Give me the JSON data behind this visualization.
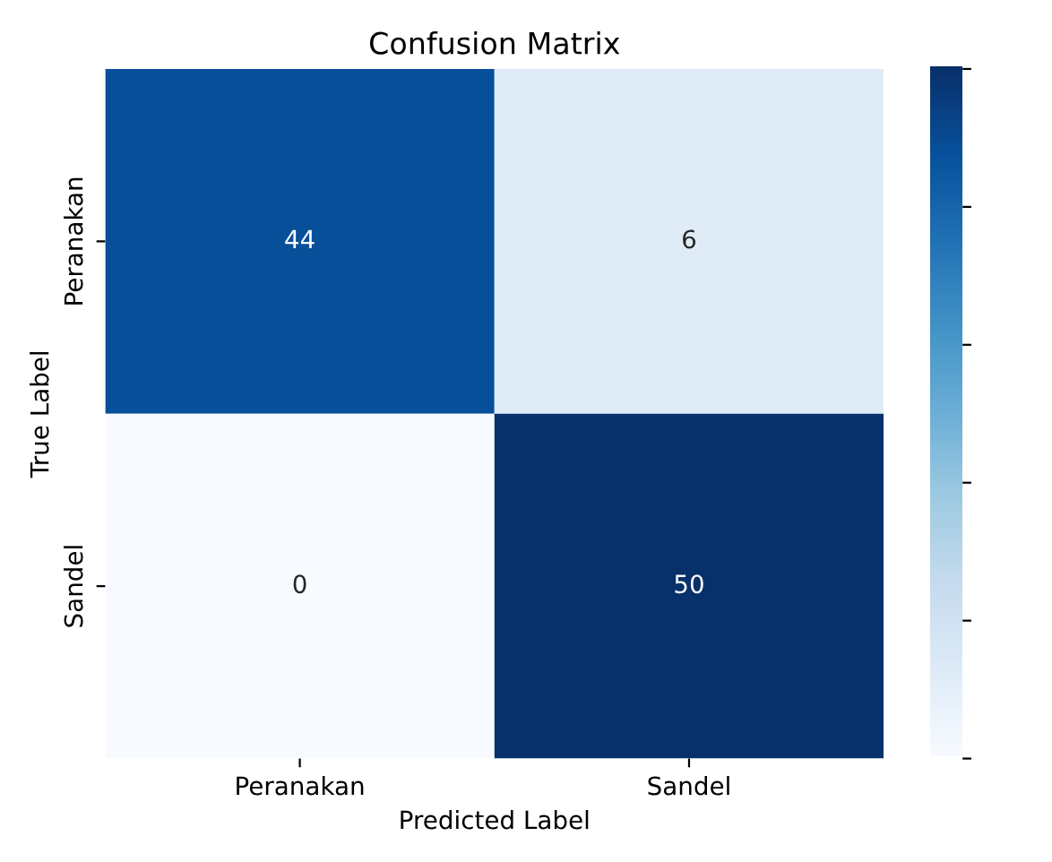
{
  "chart_data": {
    "type": "heatmap",
    "title": "Confusion Matrix",
    "xlabel": "Predicted Label",
    "ylabel": "True Label",
    "categories": [
      "Peranakan",
      "Sandel"
    ],
    "y_categories": [
      "Peranakan",
      "Sandel"
    ],
    "cells": [
      [
        44,
        6
      ],
      [
        0,
        50
      ]
    ],
    "data_labels": true
  }
}
